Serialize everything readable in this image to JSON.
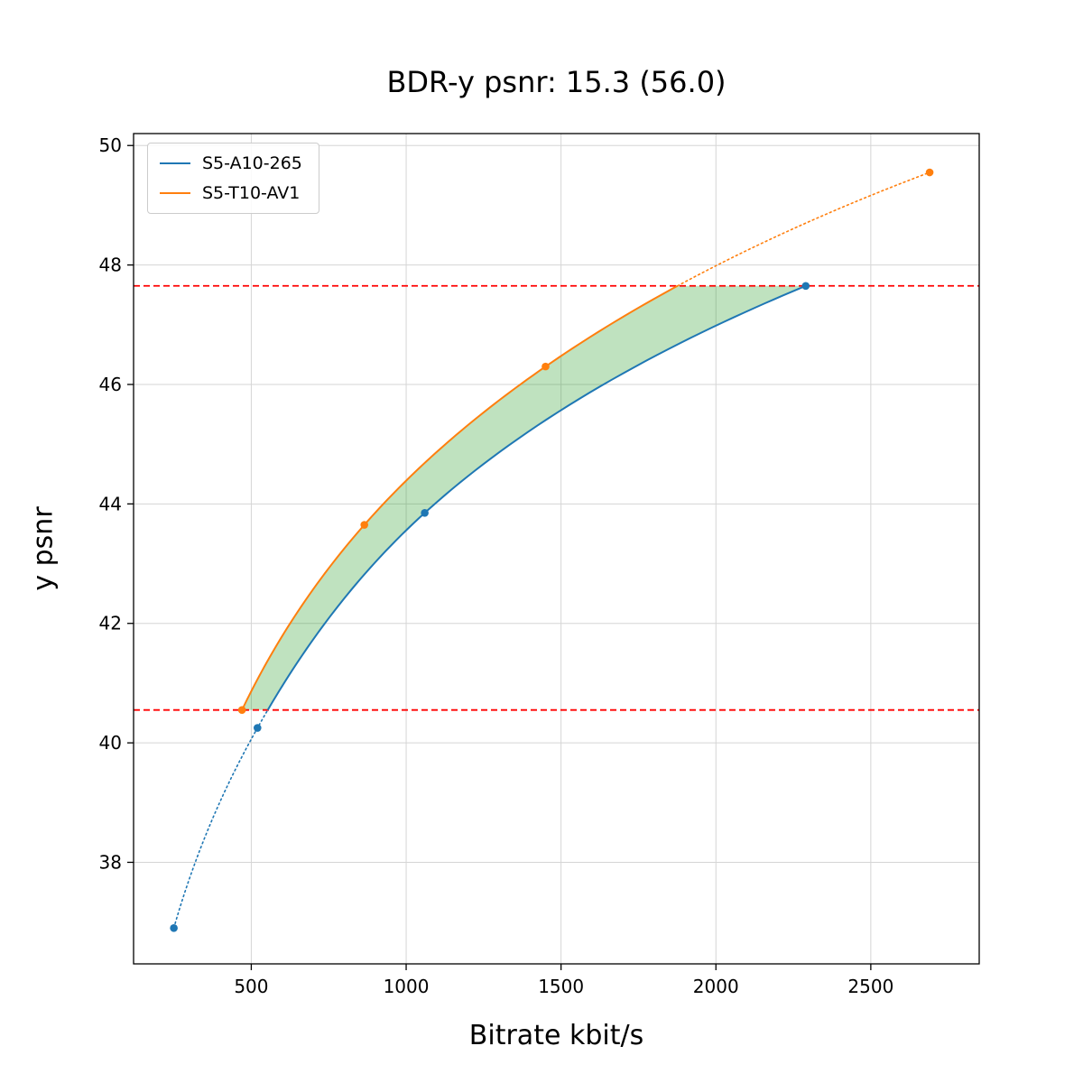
{
  "figure": {
    "title": "BDR-y psnr: 15.3 (56.0)",
    "xlabel": "Bitrate kbit/s",
    "ylabel": "y psnr"
  },
  "chart_data": {
    "type": "line",
    "title": "BDR-y psnr: 15.3 (56.0)",
    "xlabel": "Bitrate kbit/s",
    "ylabel": "y psnr",
    "xlim": [
      120,
      2850
    ],
    "ylim": [
      36.3,
      50.2
    ],
    "x_ticks": [
      500,
      1000,
      1500,
      2000,
      2500
    ],
    "y_ticks": [
      38,
      40,
      42,
      44,
      46,
      48,
      50
    ],
    "grid": true,
    "legend_position": "upper left",
    "series": [
      {
        "name": "S5-A10-265",
        "color": "#1f77b4",
        "x": [
          250,
          520,
          1060,
          2290
        ],
        "y": [
          36.9,
          40.25,
          43.85,
          47.65
        ]
      },
      {
        "name": "S5-T10-AV1",
        "color": "#ff7f0e",
        "x": [
          470,
          865,
          1450,
          2690
        ],
        "y": [
          40.55,
          43.65,
          46.3,
          49.55
        ]
      }
    ],
    "overlap_lines": {
      "color": "#ff0000",
      "lower": 40.55,
      "upper": 47.65,
      "style": "dashed"
    },
    "fill_between": {
      "color": "#2ca02c",
      "opacity": 0.3
    }
  }
}
